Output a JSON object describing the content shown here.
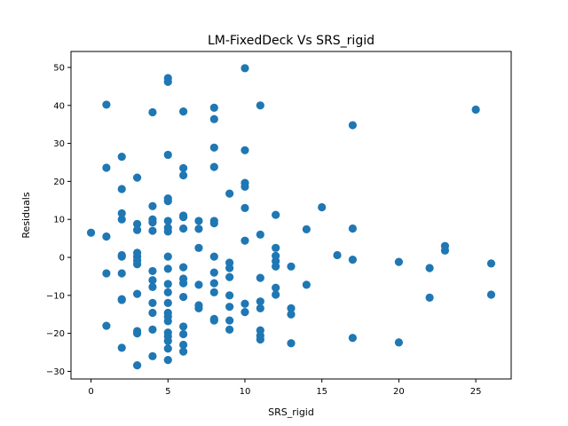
{
  "chart_data": {
    "type": "scatter",
    "title": "LM-FixedDeck Vs SRS_rigid",
    "xlabel": "SRS_rigid",
    "ylabel": "Residuals",
    "xlim": [
      -1.3,
      27.3
    ],
    "ylim": [
      -32.0,
      54.2
    ],
    "xticks": [
      0,
      5,
      10,
      15,
      20,
      25
    ],
    "yticks": [
      -30,
      -20,
      -10,
      0,
      10,
      20,
      30,
      40,
      50
    ],
    "grid": false,
    "marker_color": "#1f77b4",
    "points": [
      [
        0,
        6.5
      ],
      [
        1,
        40.2
      ],
      [
        1,
        23.6
      ],
      [
        1,
        5.5
      ],
      [
        1,
        -4.2
      ],
      [
        1,
        -18.0
      ],
      [
        2,
        26.5
      ],
      [
        2,
        18.0
      ],
      [
        2,
        11.6
      ],
      [
        2,
        10.0
      ],
      [
        2,
        0.6
      ],
      [
        2,
        0.2
      ],
      [
        2,
        -4.2
      ],
      [
        2,
        -11.0
      ],
      [
        2,
        -11.2
      ],
      [
        2,
        -23.8
      ],
      [
        3,
        21.0
      ],
      [
        3,
        8.8
      ],
      [
        3,
        7.2
      ],
      [
        3,
        1.2
      ],
      [
        3,
        0.2
      ],
      [
        3,
        -0.8
      ],
      [
        3,
        -1.8
      ],
      [
        3,
        -9.6
      ],
      [
        3,
        -19.4
      ],
      [
        3,
        -20.0
      ],
      [
        3,
        -28.4
      ],
      [
        4,
        38.2
      ],
      [
        4,
        13.5
      ],
      [
        4,
        10.0
      ],
      [
        4,
        9.2
      ],
      [
        4,
        7.0
      ],
      [
        4,
        -3.6
      ],
      [
        4,
        -6.0
      ],
      [
        4,
        -7.8
      ],
      [
        4,
        -12.0
      ],
      [
        4,
        -14.6
      ],
      [
        4,
        -19.0
      ],
      [
        4,
        -26.0
      ],
      [
        5,
        47.2
      ],
      [
        5,
        46.2
      ],
      [
        5,
        27.0
      ],
      [
        5,
        15.5
      ],
      [
        5,
        14.8
      ],
      [
        5,
        9.6
      ],
      [
        5,
        7.8
      ],
      [
        5,
        6.8
      ],
      [
        5,
        0.2
      ],
      [
        5,
        -3.0
      ],
      [
        5,
        -7.0
      ],
      [
        5,
        -9.2
      ],
      [
        5,
        -12.0
      ],
      [
        5,
        -14.6
      ],
      [
        5,
        -15.6
      ],
      [
        5,
        -16.8
      ],
      [
        5,
        -19.8
      ],
      [
        5,
        -20.8
      ],
      [
        5,
        -22.0
      ],
      [
        5,
        -24.0
      ],
      [
        5,
        -27.0
      ],
      [
        6,
        38.4
      ],
      [
        6,
        23.5
      ],
      [
        6,
        21.6
      ],
      [
        6,
        11.0
      ],
      [
        6,
        10.6
      ],
      [
        6,
        7.6
      ],
      [
        6,
        -2.6
      ],
      [
        6,
        -5.6
      ],
      [
        6,
        -6.8
      ],
      [
        6,
        -10.4
      ],
      [
        6,
        -18.2
      ],
      [
        6,
        -20.2
      ],
      [
        6,
        -23.0
      ],
      [
        6,
        -24.8
      ],
      [
        7,
        9.6
      ],
      [
        7,
        7.5
      ],
      [
        7,
        2.5
      ],
      [
        7,
        -7.2
      ],
      [
        7,
        -12.6
      ],
      [
        7,
        -13.4
      ],
      [
        8,
        39.4
      ],
      [
        8,
        36.4
      ],
      [
        8,
        28.9
      ],
      [
        8,
        23.8
      ],
      [
        8,
        9.6
      ],
      [
        8,
        9.0
      ],
      [
        8,
        0.2
      ],
      [
        8,
        -4.0
      ],
      [
        8,
        -6.8
      ],
      [
        8,
        -9.2
      ],
      [
        8,
        -16.2
      ],
      [
        8,
        -16.6
      ],
      [
        9,
        16.8
      ],
      [
        9,
        -1.4
      ],
      [
        9,
        -2.8
      ],
      [
        9,
        -5.2
      ],
      [
        9,
        -10.0
      ],
      [
        9,
        -13.0
      ],
      [
        9,
        -16.6
      ],
      [
        9,
        -19.0
      ],
      [
        10,
        49.8
      ],
      [
        10,
        28.2
      ],
      [
        10,
        19.6
      ],
      [
        10,
        18.6
      ],
      [
        10,
        13.0
      ],
      [
        10,
        4.4
      ],
      [
        10,
        -12.2
      ],
      [
        10,
        -14.4
      ],
      [
        11,
        40.0
      ],
      [
        11,
        6.0
      ],
      [
        11,
        -5.4
      ],
      [
        11,
        -11.6
      ],
      [
        11,
        -13.4
      ],
      [
        11,
        -19.2
      ],
      [
        11,
        -20.6
      ],
      [
        11,
        -21.6
      ],
      [
        12,
        11.2
      ],
      [
        12,
        2.5
      ],
      [
        12,
        0.4
      ],
      [
        12,
        -1.0
      ],
      [
        12,
        -2.4
      ],
      [
        12,
        -8.0
      ],
      [
        12,
        -9.8
      ],
      [
        13,
        -2.4
      ],
      [
        13,
        -13.4
      ],
      [
        13,
        -15.0
      ],
      [
        13,
        -22.6
      ],
      [
        14,
        7.4
      ],
      [
        14,
        -7.2
      ],
      [
        15,
        13.2
      ],
      [
        16,
        0.6
      ],
      [
        17,
        34.8
      ],
      [
        17,
        7.6
      ],
      [
        17,
        -0.6
      ],
      [
        17,
        -21.2
      ],
      [
        20,
        -1.2
      ],
      [
        20,
        -22.4
      ],
      [
        22,
        -2.8
      ],
      [
        22,
        -10.6
      ],
      [
        23,
        3.0
      ],
      [
        23,
        1.8
      ],
      [
        25,
        38.9
      ],
      [
        26,
        -1.6
      ],
      [
        26,
        -9.8
      ]
    ]
  }
}
